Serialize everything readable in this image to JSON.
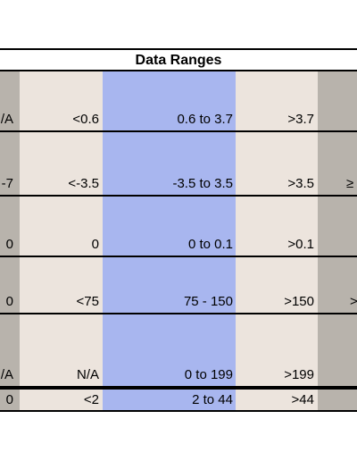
{
  "title": "Data Ranges",
  "colors": {
    "grey": "#b8b3ac",
    "beige": "#ece4dd",
    "blue": "#a8b6ef"
  },
  "rows": [
    {
      "c0": "/A",
      "c1": "<0.6",
      "c2": "0.6 to 3.7",
      "c3": ">3.7",
      "c4": ""
    },
    {
      "c0": "-7",
      "c1": "<-3.5",
      "c2": "-3.5 to 3.5",
      "c3": ">3.5",
      "c4": "≥"
    },
    {
      "c0": "0",
      "c1": "0",
      "c2": "0 to 0.1",
      "c3": ">0.1",
      "c4": ""
    },
    {
      "c0": "0",
      "c1": "<75",
      "c2": "75 - 150",
      "c3": ">150",
      "c4": ">"
    },
    {
      "c0": "/A",
      "c1": "N/A",
      "c2": "0 to 199",
      "c3": ">199",
      "c4": ""
    },
    {
      "c0": "0",
      "c1": "<2",
      "c2": "2 to 44",
      "c3": ">44",
      "c4": ""
    }
  ]
}
